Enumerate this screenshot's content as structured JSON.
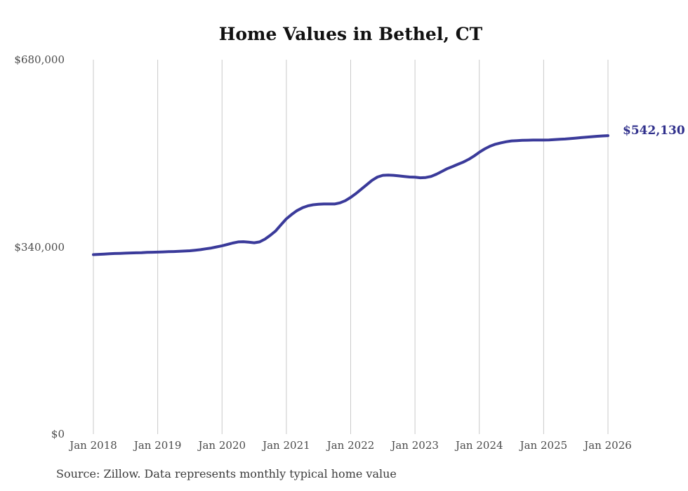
{
  "title": "Home Values in Bethel, CT",
  "source": "Source: Zillow. Data represents monthly typical home value",
  "colors": {
    "line": "#3a3a9a",
    "value_label": "#30308c",
    "gridline": "#c9c9c9",
    "tick_text": "#4a4a4a",
    "title_text": "#111111",
    "source_text": "#3b3b3b",
    "background": "#ffffff"
  },
  "chart_data": {
    "type": "line",
    "title": "Home Values in Bethel, CT",
    "xlabel": "",
    "ylabel": "",
    "ylim": [
      0,
      680000
    ],
    "grid": "vertical-only",
    "legend": "none",
    "y_ticks": [
      {
        "label": "$0",
        "value": 0
      },
      {
        "label": "$340,000",
        "value": 340000
      },
      {
        "label": "$680,000",
        "value": 680000
      }
    ],
    "x_tick_labels": [
      "Jan 2018",
      "Jan 2019",
      "Jan 2020",
      "Jan 2021",
      "Jan 2022",
      "Jan 2023",
      "Jan 2024",
      "Jan 2025",
      "Jan 2026"
    ],
    "series": [
      {
        "name": "Monthly typical home value",
        "end_label": "$542,130",
        "end_value": 542130,
        "months": [
          "2018-01",
          "2018-02",
          "2018-03",
          "2018-04",
          "2018-05",
          "2018-06",
          "2018-07",
          "2018-08",
          "2018-09",
          "2018-10",
          "2018-11",
          "2018-12",
          "2019-01",
          "2019-02",
          "2019-03",
          "2019-04",
          "2019-05",
          "2019-06",
          "2019-07",
          "2019-08",
          "2019-09",
          "2019-10",
          "2019-11",
          "2019-12",
          "2020-01",
          "2020-02",
          "2020-03",
          "2020-04",
          "2020-05",
          "2020-06",
          "2020-07",
          "2020-08",
          "2020-09",
          "2020-10",
          "2020-11",
          "2020-12",
          "2021-01",
          "2021-02",
          "2021-03",
          "2021-04",
          "2021-05",
          "2021-06",
          "2021-07",
          "2021-08",
          "2021-09",
          "2021-10",
          "2021-11",
          "2021-12",
          "2022-01",
          "2022-02",
          "2022-03",
          "2022-04",
          "2022-05",
          "2022-06",
          "2022-07",
          "2022-08",
          "2022-09",
          "2022-10",
          "2022-11",
          "2022-12",
          "2023-01",
          "2023-02",
          "2023-03",
          "2023-04",
          "2023-05",
          "2023-06",
          "2023-07",
          "2023-08",
          "2023-09",
          "2023-10",
          "2023-11",
          "2023-12",
          "2024-01",
          "2024-02",
          "2024-03",
          "2024-04",
          "2024-05",
          "2024-06",
          "2024-07",
          "2024-08",
          "2024-09",
          "2024-10",
          "2024-11",
          "2024-12",
          "2025-01",
          "2025-02",
          "2025-03",
          "2025-04",
          "2025-05",
          "2025-06",
          "2025-07",
          "2025-08",
          "2025-09",
          "2025-10",
          "2025-11",
          "2025-12",
          "2026-01"
        ],
        "values": [
          326000,
          326500,
          327000,
          327500,
          328000,
          328300,
          328600,
          329000,
          329300,
          329600,
          330000,
          330300,
          330600,
          331000,
          331300,
          331600,
          332000,
          332500,
          333000,
          334000,
          335000,
          336500,
          338000,
          340000,
          342000,
          344500,
          347000,
          349000,
          349500,
          348500,
          347500,
          349000,
          354000,
          361000,
          369000,
          380000,
          391000,
          399000,
          406000,
          411000,
          414500,
          416500,
          417500,
          418000,
          418000,
          418000,
          420000,
          424000,
          430000,
          437000,
          445000,
          453000,
          461000,
          467000,
          470000,
          470500,
          470000,
          469000,
          468000,
          467000,
          466500,
          465500,
          466000,
          468000,
          472000,
          477000,
          482000,
          486000,
          490000,
          494000,
          499000,
          505000,
          512000,
          518000,
          523000,
          526500,
          529000,
          531000,
          532500,
          533000,
          533500,
          533800,
          534000,
          534000,
          534000,
          534300,
          534800,
          535400,
          536000,
          536800,
          537600,
          538500,
          539300,
          540200,
          541000,
          541600,
          542130
        ]
      }
    ]
  }
}
